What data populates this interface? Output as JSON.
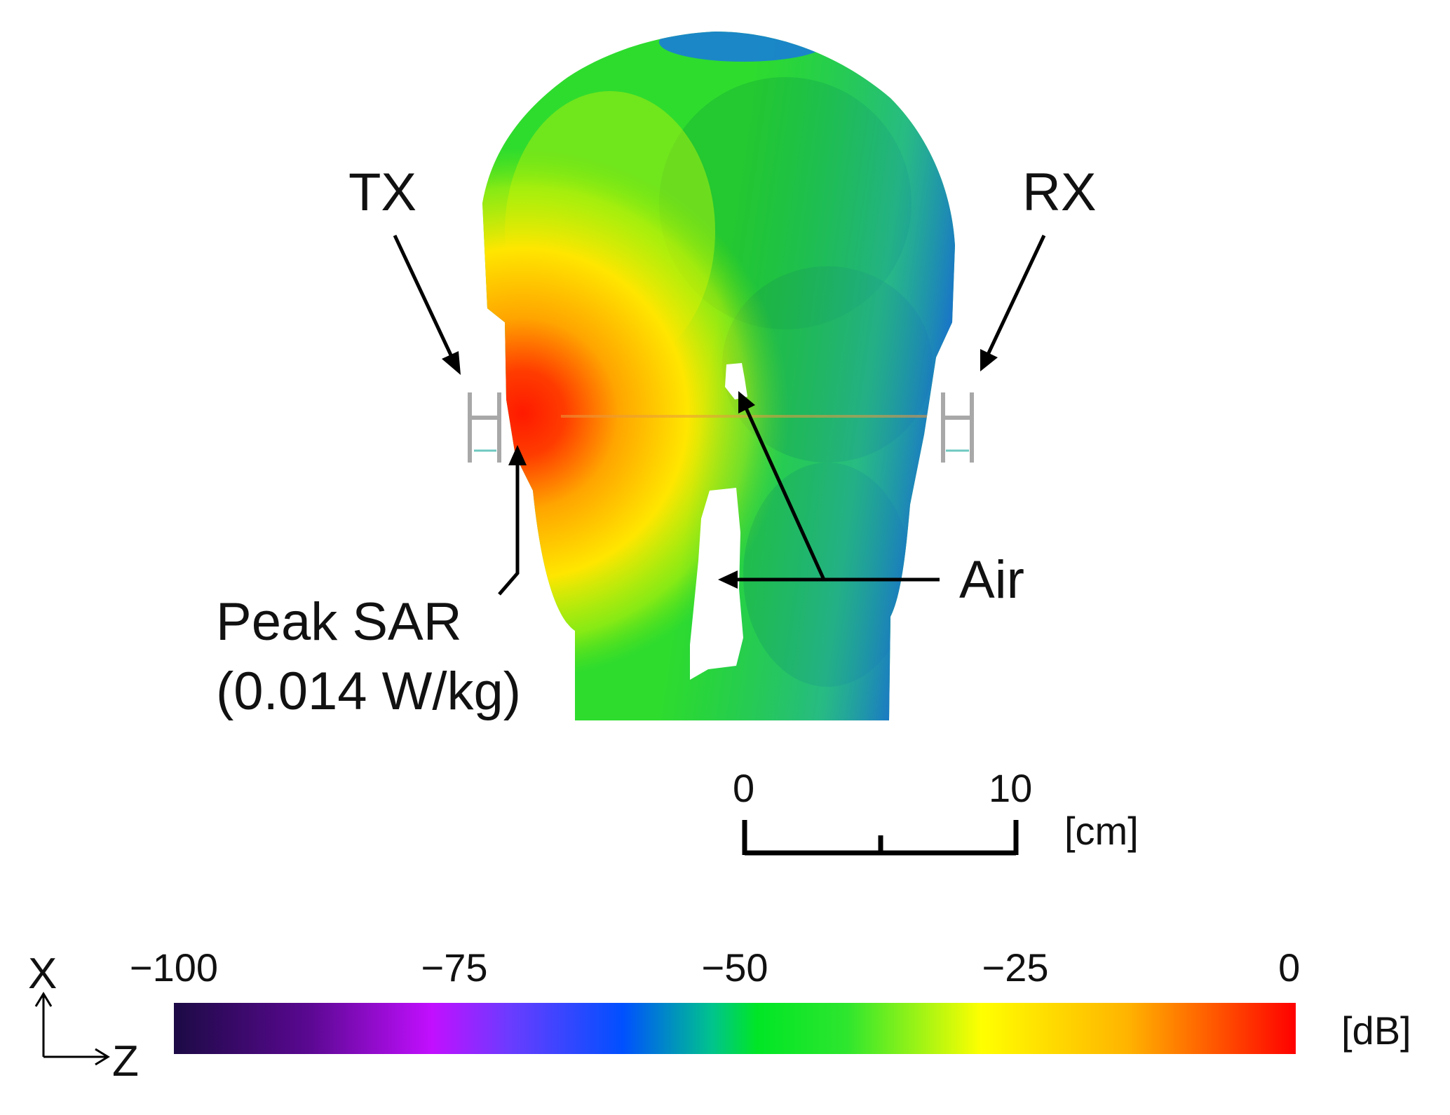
{
  "labels": {
    "tx": "TX",
    "rx": "RX",
    "air": "Air",
    "peak_sar_title": "Peak SAR",
    "peak_sar_value": "(0.014 W/kg)"
  },
  "scale_bar": {
    "start_label": "0",
    "end_label": "10",
    "unit": "[cm]"
  },
  "axes_indicator": {
    "vertical": "X",
    "horizontal": "Z"
  },
  "colorbar": {
    "unit": "[dB]",
    "ticks": [
      "−100",
      "−75",
      "−50",
      "−25",
      "0"
    ],
    "range": [
      -100,
      0
    ],
    "stops": [
      {
        "value": -100,
        "color": "#1c0a45"
      },
      {
        "value": -88,
        "color": "#5a0891"
      },
      {
        "value": -77,
        "color": "#c20fff"
      },
      {
        "value": -70,
        "color": "#6a3cff"
      },
      {
        "value": -60,
        "color": "#0050ff"
      },
      {
        "value": -52,
        "color": "#00c48c"
      },
      {
        "value": -48,
        "color": "#00e626"
      },
      {
        "value": -40,
        "color": "#2ee62e"
      },
      {
        "value": -28,
        "color": "#ffff00"
      },
      {
        "value": -15,
        "color": "#ffb400"
      },
      {
        "value": 0,
        "color": "#ff0000"
      }
    ]
  }
}
